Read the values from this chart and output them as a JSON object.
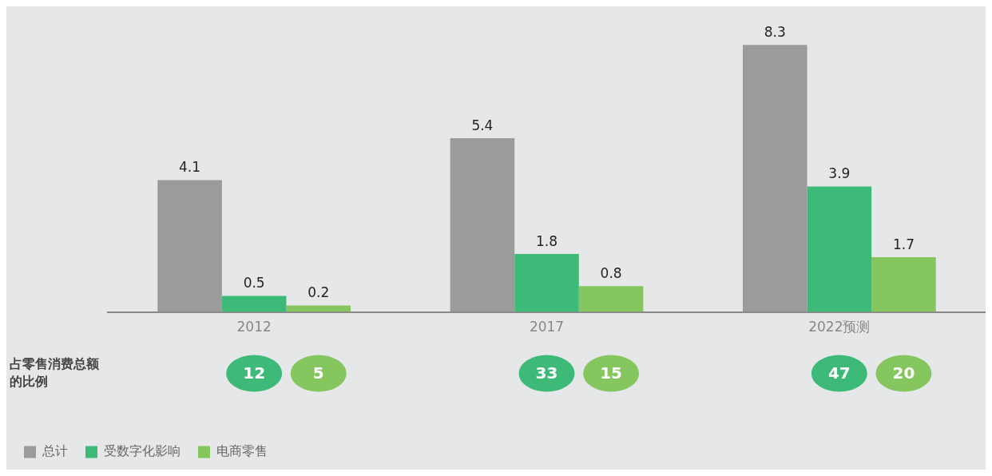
{
  "chart_data": {
    "type": "bar",
    "categories": [
      "2012",
      "2017",
      "2022预测"
    ],
    "series": [
      {
        "name": "总计",
        "color": "#9b9b9b",
        "values": [
          4.1,
          5.4,
          8.3
        ]
      },
      {
        "name": "受数字化影响",
        "color": "#3dba78",
        "values": [
          0.5,
          1.8,
          3.9
        ]
      },
      {
        "name": "电商零售",
        "color": "#86c65e",
        "values": [
          0.2,
          0.8,
          1.7
        ]
      }
    ],
    "data_labels": true,
    "legend": "bottom left",
    "grid": false,
    "annotations": [
      "占零售消费总额的比例",
      "12",
      "5",
      "33",
      "15",
      "47",
      "20"
    ]
  }
}
